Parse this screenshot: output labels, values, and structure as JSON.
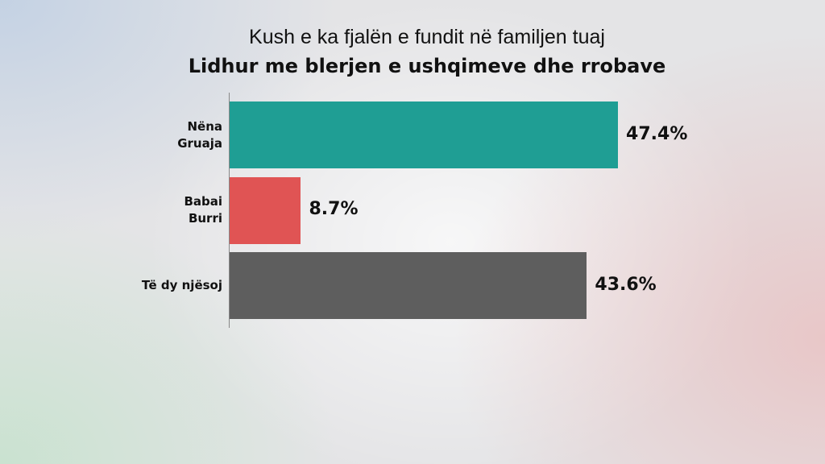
{
  "chart_data": {
    "type": "bar",
    "orientation": "horizontal",
    "title": "Kush e ka fjalën e fundit në familjen tuaj",
    "subtitle": "Lidhur me blerjen e ushqimeve dhe rrobave",
    "categories": [
      "Nëna\nGruaja",
      "Babai\nBurri",
      "Të dy njësoj"
    ],
    "values": [
      47.4,
      8.7,
      43.6
    ],
    "value_labels": [
      "47.4%",
      "8.7%",
      "43.6%"
    ],
    "colors": [
      "#1f9e94",
      "#e05454",
      "#5e5e5e"
    ]
  }
}
